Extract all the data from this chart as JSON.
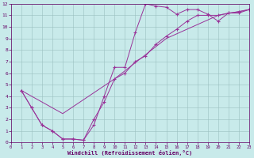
{
  "xlabel": "Windchill (Refroidissement éolien,°C)",
  "bg_color": "#c8eaea",
  "line_color": "#993399",
  "grid_color": "#9bbfbf",
  "text_color": "#660066",
  "xlim": [
    0,
    23
  ],
  "ylim": [
    0,
    12
  ],
  "xticks": [
    0,
    1,
    2,
    3,
    4,
    5,
    6,
    7,
    8,
    9,
    10,
    11,
    12,
    13,
    14,
    15,
    16,
    17,
    18,
    19,
    20,
    21,
    22,
    23
  ],
  "yticks": [
    0,
    1,
    2,
    3,
    4,
    5,
    6,
    7,
    8,
    9,
    10,
    11,
    12
  ],
  "s1_x": [
    1,
    2,
    3,
    4,
    5,
    6,
    7,
    8,
    9,
    10,
    11,
    12,
    13,
    14,
    15,
    16,
    17,
    18,
    19,
    20,
    21,
    22,
    23
  ],
  "s1_y": [
    4.5,
    3.0,
    1.5,
    1.0,
    0.3,
    0.3,
    0.2,
    1.5,
    4.0,
    6.5,
    6.5,
    9.5,
    12.0,
    11.8,
    11.7,
    11.1,
    11.5,
    11.5,
    11.1,
    10.5,
    11.2,
    11.2,
    11.5
  ],
  "s2_x": [
    1,
    2,
    3,
    4,
    5,
    6,
    7,
    8,
    9,
    10,
    11,
    12,
    13,
    14,
    15,
    16,
    17,
    18,
    19,
    20,
    21,
    22,
    23
  ],
  "s2_y": [
    4.5,
    3.0,
    1.5,
    1.0,
    0.3,
    0.3,
    0.2,
    2.0,
    3.5,
    5.5,
    6.0,
    7.0,
    7.5,
    8.5,
    9.2,
    9.8,
    10.5,
    11.0,
    11.0,
    11.0,
    11.2,
    11.3,
    11.5
  ],
  "s3_x": [
    1,
    5,
    10,
    15,
    20,
    23
  ],
  "s3_y": [
    4.5,
    2.5,
    5.5,
    9.0,
    11.0,
    11.5
  ]
}
